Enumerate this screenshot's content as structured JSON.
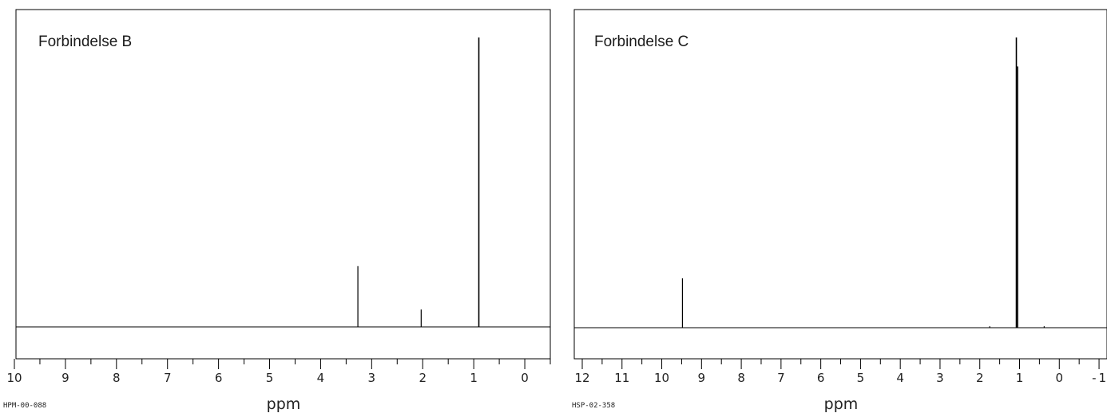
{
  "chart_data": [
    {
      "type": "line",
      "title": "Forbindelse B",
      "xlabel": "ppm",
      "code": "HPM-00-088",
      "xlim": [
        10,
        -0.5
      ],
      "x_ticks": [
        10,
        9,
        8,
        7,
        6,
        5,
        4,
        3,
        2,
        1,
        0
      ],
      "peaks": [
        {
          "ppm": 3.27,
          "height": 0.21
        },
        {
          "ppm": 2.03,
          "height": 0.06
        },
        {
          "ppm": 0.9,
          "height": 1.0
        }
      ]
    },
    {
      "type": "line",
      "title": "Forbindelse C",
      "xlabel": "ppm",
      "code": "HSP-02-358",
      "xlim": [
        12,
        -1.2
      ],
      "x_ticks": [
        12,
        11,
        10,
        9,
        8,
        7,
        6,
        5,
        4,
        3,
        2,
        1,
        0,
        -1
      ],
      "peaks": [
        {
          "ppm": 9.48,
          "height": 0.17
        },
        {
          "ppm": 1.75,
          "height": 0.005
        },
        {
          "ppm": 1.08,
          "height": 1.0
        },
        {
          "ppm": 1.05,
          "height": 0.9
        },
        {
          "ppm": 0.38,
          "height": 0.005
        }
      ]
    }
  ]
}
